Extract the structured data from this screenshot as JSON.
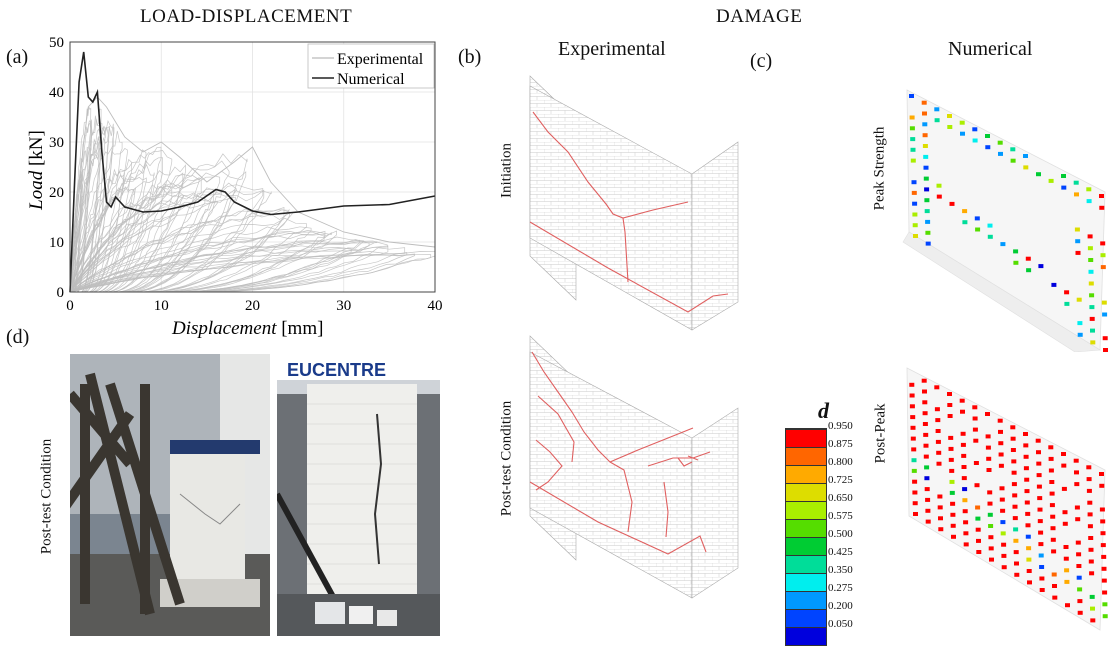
{
  "headers": {
    "left": "LOAD-DISPLACEMENT",
    "right": "DAMAGE"
  },
  "panels": {
    "a": "(a)",
    "b": "(b)",
    "c": "(c)",
    "d": "(d)"
  },
  "subheads": {
    "experimental": "Experimental",
    "numerical": "Numerical"
  },
  "row_labels": {
    "initiation": "Initiation",
    "post_test_exp": "Post-test Condition",
    "peak_strength": "Peak Strength",
    "post_peak": "Post-Peak",
    "post_test_photo": "Post-test Condition"
  },
  "photo_text": {
    "banner": "EUCENTRE"
  },
  "colorbar": {
    "title": "d",
    "levels": [
      "0.950",
      "0.875",
      "0.800",
      "0.725",
      "0.650",
      "0.575",
      "0.500",
      "0.425",
      "0.350",
      "0.275",
      "0.200",
      "0.050"
    ],
    "colors": [
      "#ff0000",
      "#ff6600",
      "#ffaa00",
      "#dddd00",
      "#aaee00",
      "#55dd00",
      "#00cc33",
      "#00dd99",
      "#00eeee",
      "#0099ff",
      "#0044ff",
      "#0000dd"
    ]
  },
  "chart_data": {
    "type": "line",
    "xlabel_italic": "Displacement",
    "xlabel_unit": " [mm]",
    "ylabel_italic": "Load",
    "ylabel_unit": " [kN]",
    "xlim": [
      0,
      40
    ],
    "ylim": [
      0,
      50
    ],
    "xticks": [
      0,
      10,
      20,
      30,
      40
    ],
    "yticks": [
      0,
      10,
      20,
      30,
      40,
      50
    ],
    "grid": true,
    "legend": "top-right",
    "series": [
      {
        "name": "Experimental",
        "color": "#bdbdbd",
        "note_values": "dense cyclic loops, approx envelope",
        "x": [
          0,
          1.5,
          2,
          3,
          4,
          5,
          6,
          8,
          10,
          12,
          15,
          18,
          20,
          22,
          25,
          30,
          35,
          40
        ],
        "y": [
          0,
          30,
          37,
          39,
          37,
          34,
          31,
          28,
          30,
          27,
          22,
          26,
          29,
          22,
          16,
          12,
          10,
          9
        ]
      },
      {
        "name": "Numerical",
        "color": "#222222",
        "x": [
          0,
          0.5,
          1,
          1.5,
          2,
          2.5,
          3,
          3.5,
          4,
          4.5,
          5,
          6,
          7,
          8,
          10,
          12,
          14,
          16,
          17,
          18,
          20,
          22,
          25,
          30,
          35,
          40
        ],
        "y": [
          0,
          22,
          42,
          48,
          39,
          38,
          40,
          28,
          18,
          17,
          19,
          17,
          16.5,
          16,
          16.2,
          17,
          18,
          20.5,
          20,
          18,
          16.2,
          15.5,
          16,
          17.2,
          17.5,
          19.2
        ]
      }
    ]
  }
}
